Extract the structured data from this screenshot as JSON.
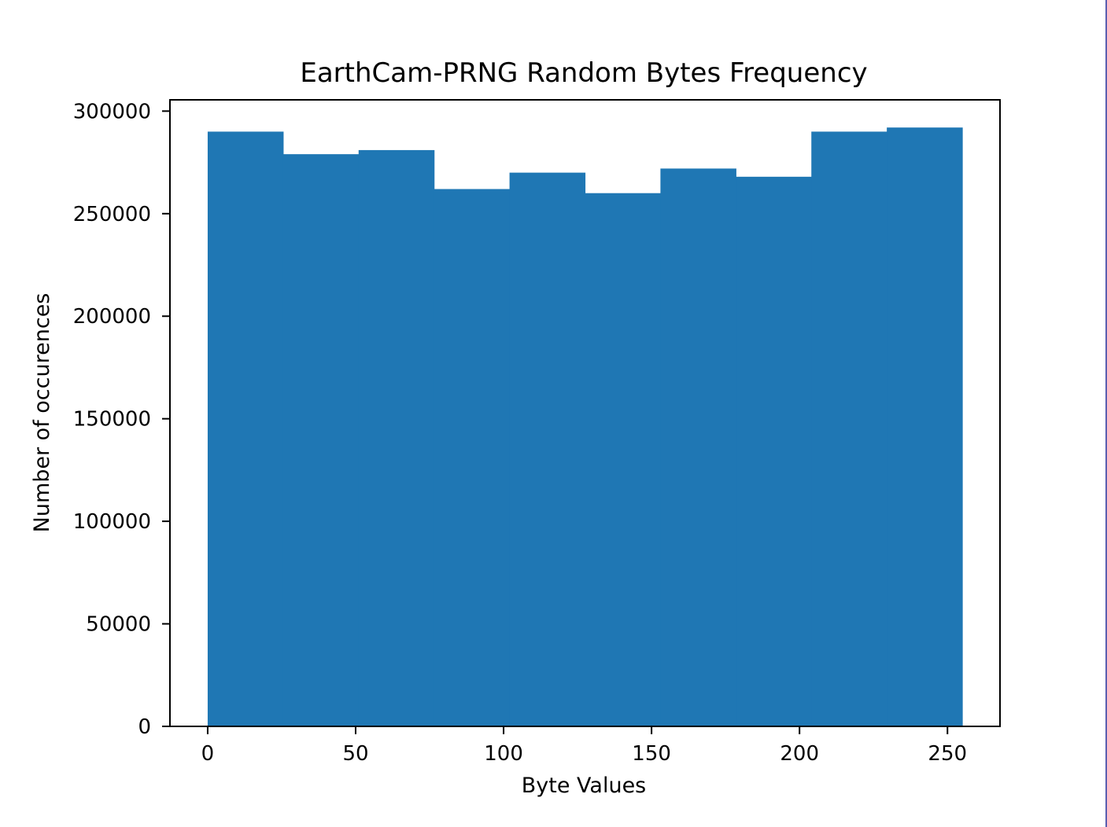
{
  "chart_data": {
    "type": "bar",
    "title": "EarthCam-PRNG Random Bytes Frequency",
    "xlabel": "Byte Values",
    "ylabel": "Number of occurences",
    "bin_edges": [
      0,
      25.5,
      51,
      76.5,
      102,
      127.5,
      153,
      178.5,
      204,
      229.5,
      255
    ],
    "values": [
      290000,
      279000,
      281000,
      262000,
      270000,
      260000,
      272000,
      268000,
      290000,
      292000
    ],
    "xlim": [
      -12.75,
      267.75
    ],
    "ylim": [
      0,
      305500
    ],
    "xticks": [
      0,
      50,
      100,
      150,
      200,
      250
    ],
    "xtick_labels": [
      "0",
      "50",
      "100",
      "150",
      "200",
      "250"
    ],
    "yticks": [
      0,
      50000,
      100000,
      150000,
      200000,
      250000,
      300000
    ],
    "ytick_labels": [
      "0",
      "50000",
      "100000",
      "150000",
      "200000",
      "250000",
      "300000"
    ],
    "grid": false,
    "bar_color": "#1f77b4"
  }
}
